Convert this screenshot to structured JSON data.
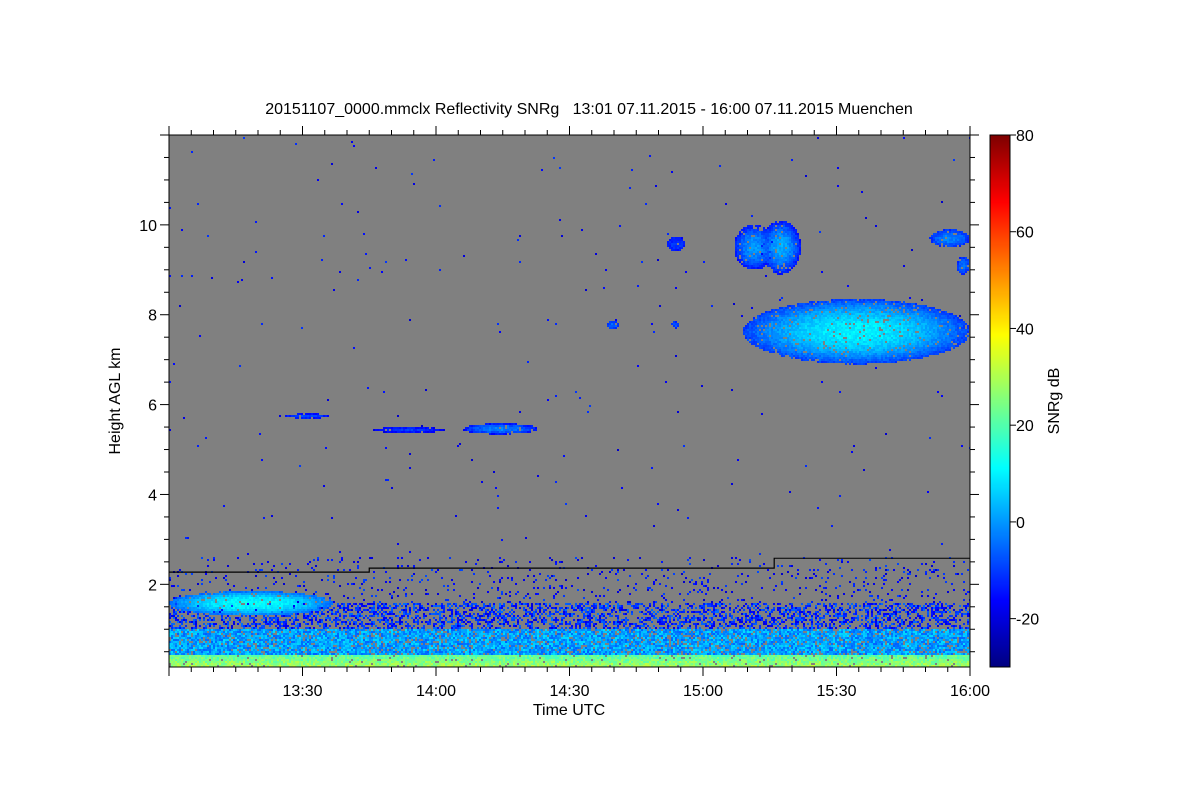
{
  "chart_data": {
    "type": "heatmap",
    "title": "20151107_0000.mmclx Reflectivity SNRg   13:01 07.11.2015 - 16:00 07.11.2015 Muenchen",
    "xlabel": "Time UTC",
    "ylabel": "Height AGL km",
    "colorbar_label": "SNRg dB",
    "xlim_minutes_after_1300": [
      0,
      180
    ],
    "x_ticks": [
      {
        "m": 30,
        "label": "13:30"
      },
      {
        "m": 60,
        "label": "14:00"
      },
      {
        "m": 90,
        "label": "14:30"
      },
      {
        "m": 120,
        "label": "15:00"
      },
      {
        "m": 150,
        "label": "15:30"
      },
      {
        "m": 180,
        "label": "16:00"
      }
    ],
    "x_minor_step_minutes": 5,
    "ylim_km": [
      0.16,
      12.0
    ],
    "y_ticks": [
      {
        "v": 2,
        "label": "2"
      },
      {
        "v": 4,
        "label": "4"
      },
      {
        "v": 6,
        "label": "6"
      },
      {
        "v": 8,
        "label": "8"
      },
      {
        "v": 10,
        "label": "10"
      }
    ],
    "y_minor_step_km": 0.5,
    "clim_db": [
      -30,
      80
    ],
    "colormap": "jet",
    "colorbar_ticks": [
      {
        "v": 80,
        "label": "80"
      },
      {
        "v": 60,
        "label": "60"
      },
      {
        "v": 40,
        "label": "40"
      },
      {
        "v": 20,
        "label": "20"
      },
      {
        "v": 0,
        "label": "0"
      },
      {
        "v": -20,
        "label": "-20"
      }
    ],
    "background_color": "#808080",
    "boundary_line": [
      {
        "m0": 0,
        "m1": 45,
        "h": 2.27
      },
      {
        "m0": 45,
        "m1": 136,
        "h": 2.36
      },
      {
        "m0": 136,
        "m1": 180,
        "h": 2.58
      }
    ],
    "boundary_layer": {
      "top_km": 1.6,
      "surface_snr_db": 30,
      "mid_snr_db": 0,
      "upper_snr_db": -12
    },
    "features": [
      {
        "m": [
          0,
          37
        ],
        "h": [
          1.3,
          1.85
        ],
        "peak": 12,
        "edge": -5
      },
      {
        "m": [
          26,
          36
        ],
        "h": [
          5.69,
          5.8
        ],
        "peak": -8,
        "edge": -16
      },
      {
        "m": [
          46,
          62
        ],
        "h": [
          5.37,
          5.5
        ],
        "peak": -10,
        "edge": -18
      },
      {
        "m": [
          66,
          83
        ],
        "h": [
          5.34,
          5.58
        ],
        "peak": -2,
        "edge": -15
      },
      {
        "m": [
          98.5,
          101
        ],
        "h": [
          7.68,
          7.86
        ],
        "peak": -5,
        "edge": -12
      },
      {
        "m": [
          113,
          114.5
        ],
        "h": [
          7.7,
          7.85
        ],
        "peak": -8,
        "edge": -12
      },
      {
        "m": [
          112,
          116
        ],
        "h": [
          9.4,
          9.75
        ],
        "peak": -10,
        "edge": -15
      },
      {
        "m": [
          127,
          136
        ],
        "h": [
          9.0,
          10.0
        ],
        "peak": 0,
        "edge": -15
      },
      {
        "m": [
          133,
          142
        ],
        "h": [
          8.9,
          10.1
        ],
        "peak": 2,
        "edge": -15
      },
      {
        "m": [
          129,
          180
        ],
        "h": [
          6.9,
          8.35
        ],
        "peak": 10,
        "edge": -10
      },
      {
        "m": [
          171,
          180
        ],
        "h": [
          9.5,
          9.9
        ],
        "peak": -2,
        "edge": -12
      },
      {
        "m": [
          177,
          180
        ],
        "h": [
          8.9,
          9.3
        ],
        "peak": -5,
        "edge": -12
      }
    ]
  }
}
